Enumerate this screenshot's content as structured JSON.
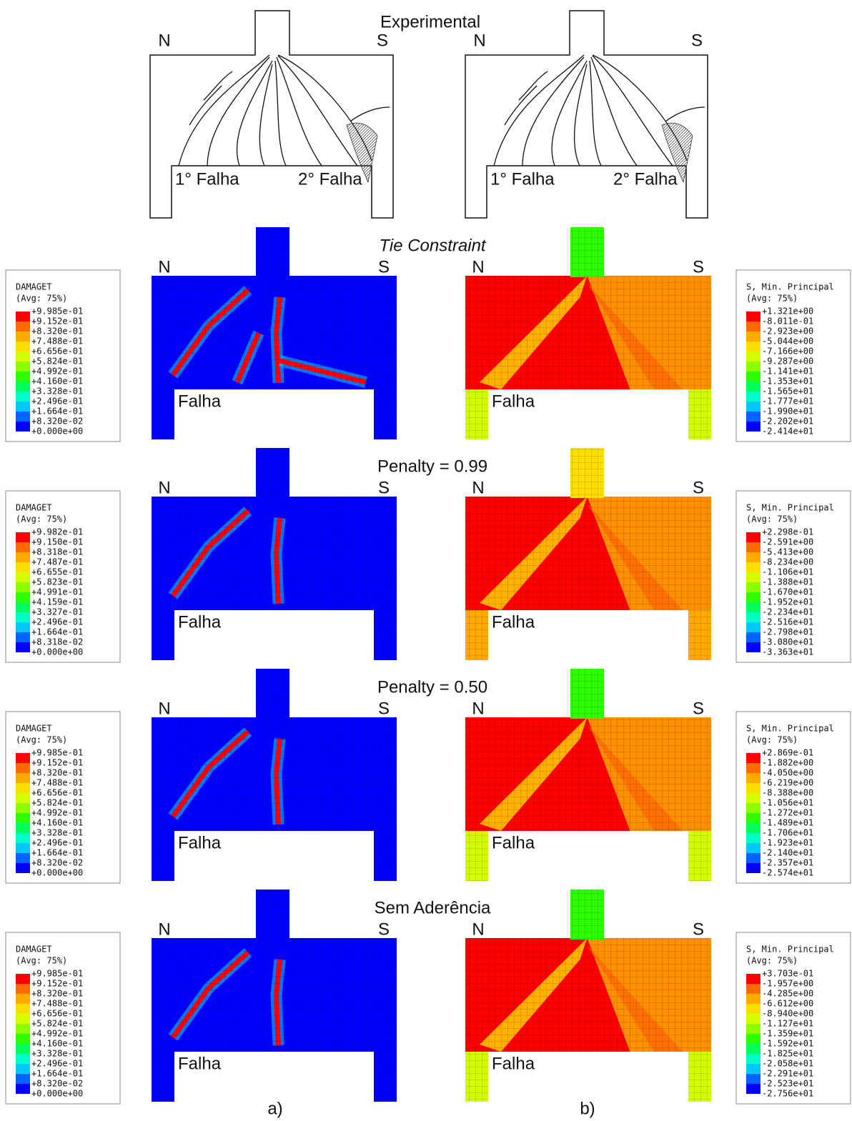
{
  "experimental": {
    "title": "Experimental",
    "panels": [
      {
        "north": "N",
        "south": "S",
        "failure_1": "1° Falha",
        "failure_2": "2° Falha"
      },
      {
        "north": "N",
        "south": "S",
        "failure_1": "1° Falha",
        "failure_2": "2° Falha"
      }
    ]
  },
  "legend_colors": [
    "#ff0000",
    "#ff6a00",
    "#ffaa00",
    "#ffdd00",
    "#d4ff00",
    "#8cff00",
    "#2bff00",
    "#00ff59",
    "#00ffc8",
    "#00c8ff",
    "#0064ff",
    "#0000ff"
  ],
  "simulations": [
    {
      "title": "Tie Constraint",
      "panels": [
        {
          "north": "N",
          "south": "S",
          "failure": "Falha"
        },
        {
          "north": "N",
          "south": "S",
          "failure": "Falha"
        }
      ],
      "damage_legend": {
        "title": "DAMAGET",
        "average": "(Avg: 75%)",
        "labels": [
          "+9.985e-01",
          "+9.152e-01",
          "+8.320e-01",
          "+7.488e-01",
          "+6.656e-01",
          "+5.824e-01",
          "+4.992e-01",
          "+4.160e-01",
          "+3.328e-01",
          "+2.496e-01",
          "+1.664e-01",
          "+8.320e-02",
          "+0.000e+00"
        ]
      },
      "stress_legend": {
        "title": "S, Min. Principal",
        "average": "(Avg: 75%)",
        "labels": [
          "+1.321e+00",
          "-8.011e-01",
          "-2.923e+00",
          "-5.044e+00",
          "-7.166e+00",
          "-9.287e+00",
          "-1.141e+01",
          "-1.353e+01",
          "-1.565e+01",
          "-1.777e+01",
          "-1.990e+01",
          "-2.202e+01",
          "-2.414e+01"
        ]
      }
    },
    {
      "title": "Penalty = 0.99",
      "panels": [
        {
          "north": "N",
          "south": "S",
          "failure": "Falha"
        },
        {
          "north": "N",
          "south": "S",
          "failure": "Falha"
        }
      ],
      "damage_legend": {
        "title": "DAMAGET",
        "average": "(Avg: 75%)",
        "labels": [
          "+9.982e-01",
          "+9.150e-01",
          "+8.318e-01",
          "+7.487e-01",
          "+6.655e-01",
          "+5.823e-01",
          "+4.991e-01",
          "+4.159e-01",
          "+3.327e-01",
          "+2.496e-01",
          "+1.664e-01",
          "+8.318e-02",
          "+0.000e+00"
        ]
      },
      "stress_legend": {
        "title": "S, Min. Principal",
        "average": "(Avg: 75%)",
        "labels": [
          "+2.298e-01",
          "-2.591e+00",
          "-5.413e+00",
          "-8.234e+00",
          "-1.106e+01",
          "-1.388e+01",
          "-1.670e+01",
          "-1.952e+01",
          "-2.234e+01",
          "-2.516e+01",
          "-2.798e+01",
          "-3.080e+01",
          "-3.363e+01"
        ]
      }
    },
    {
      "title": "Penalty = 0.50",
      "panels": [
        {
          "north": "N",
          "south": "S",
          "failure": "Falha"
        },
        {
          "north": "N",
          "south": "S",
          "failure": "Falha"
        }
      ],
      "damage_legend": {
        "title": "DAMAGET",
        "average": "(Avg: 75%)",
        "labels": [
          "+9.985e-01",
          "+9.152e-01",
          "+8.320e-01",
          "+7.488e-01",
          "+6.656e-01",
          "+5.824e-01",
          "+4.992e-01",
          "+4.160e-01",
          "+3.328e-01",
          "+2.496e-01",
          "+1.664e-01",
          "+8.320e-02",
          "+0.000e+00"
        ]
      },
      "stress_legend": {
        "title": "S, Min. Principal",
        "average": "(Avg: 75%)",
        "labels": [
          "+2.869e-01",
          "-1.882e+00",
          "-4.050e+00",
          "-6.219e+00",
          "-8.388e+00",
          "-1.056e+01",
          "-1.272e+01",
          "-1.489e+01",
          "-1.706e+01",
          "-1.923e+01",
          "-2.140e+01",
          "-2.357e+01",
          "-2.574e+01"
        ]
      }
    },
    {
      "title": "Sem Aderência",
      "panels": [
        {
          "north": "N",
          "south": "S",
          "failure": "Falha"
        },
        {
          "north": "N",
          "south": "S",
          "failure": "Falha"
        }
      ],
      "damage_legend": {
        "title": "DAMAGET",
        "average": "(Avg: 75%)",
        "labels": [
          "+9.985e-01",
          "+9.152e-01",
          "+8.320e-01",
          "+7.488e-01",
          "+6.656e-01",
          "+5.824e-01",
          "+4.992e-01",
          "+4.160e-01",
          "+3.328e-01",
          "+2.496e-01",
          "+1.664e-01",
          "+8.320e-02",
          "+0.000e+00"
        ]
      },
      "stress_legend": {
        "title": "S, Min. Principal",
        "average": "(Avg: 75%)",
        "labels": [
          "+3.703e-01",
          "-1.957e+00",
          "-4.285e+00",
          "-6.612e+00",
          "-8.940e+00",
          "-1.127e+01",
          "-1.359e+01",
          "-1.592e+01",
          "-1.825e+01",
          "-2.058e+01",
          "-2.291e+01",
          "-2.523e+01",
          "-2.756e+01"
        ]
      }
    }
  ],
  "captions": {
    "left": "a)",
    "right": "b)"
  }
}
